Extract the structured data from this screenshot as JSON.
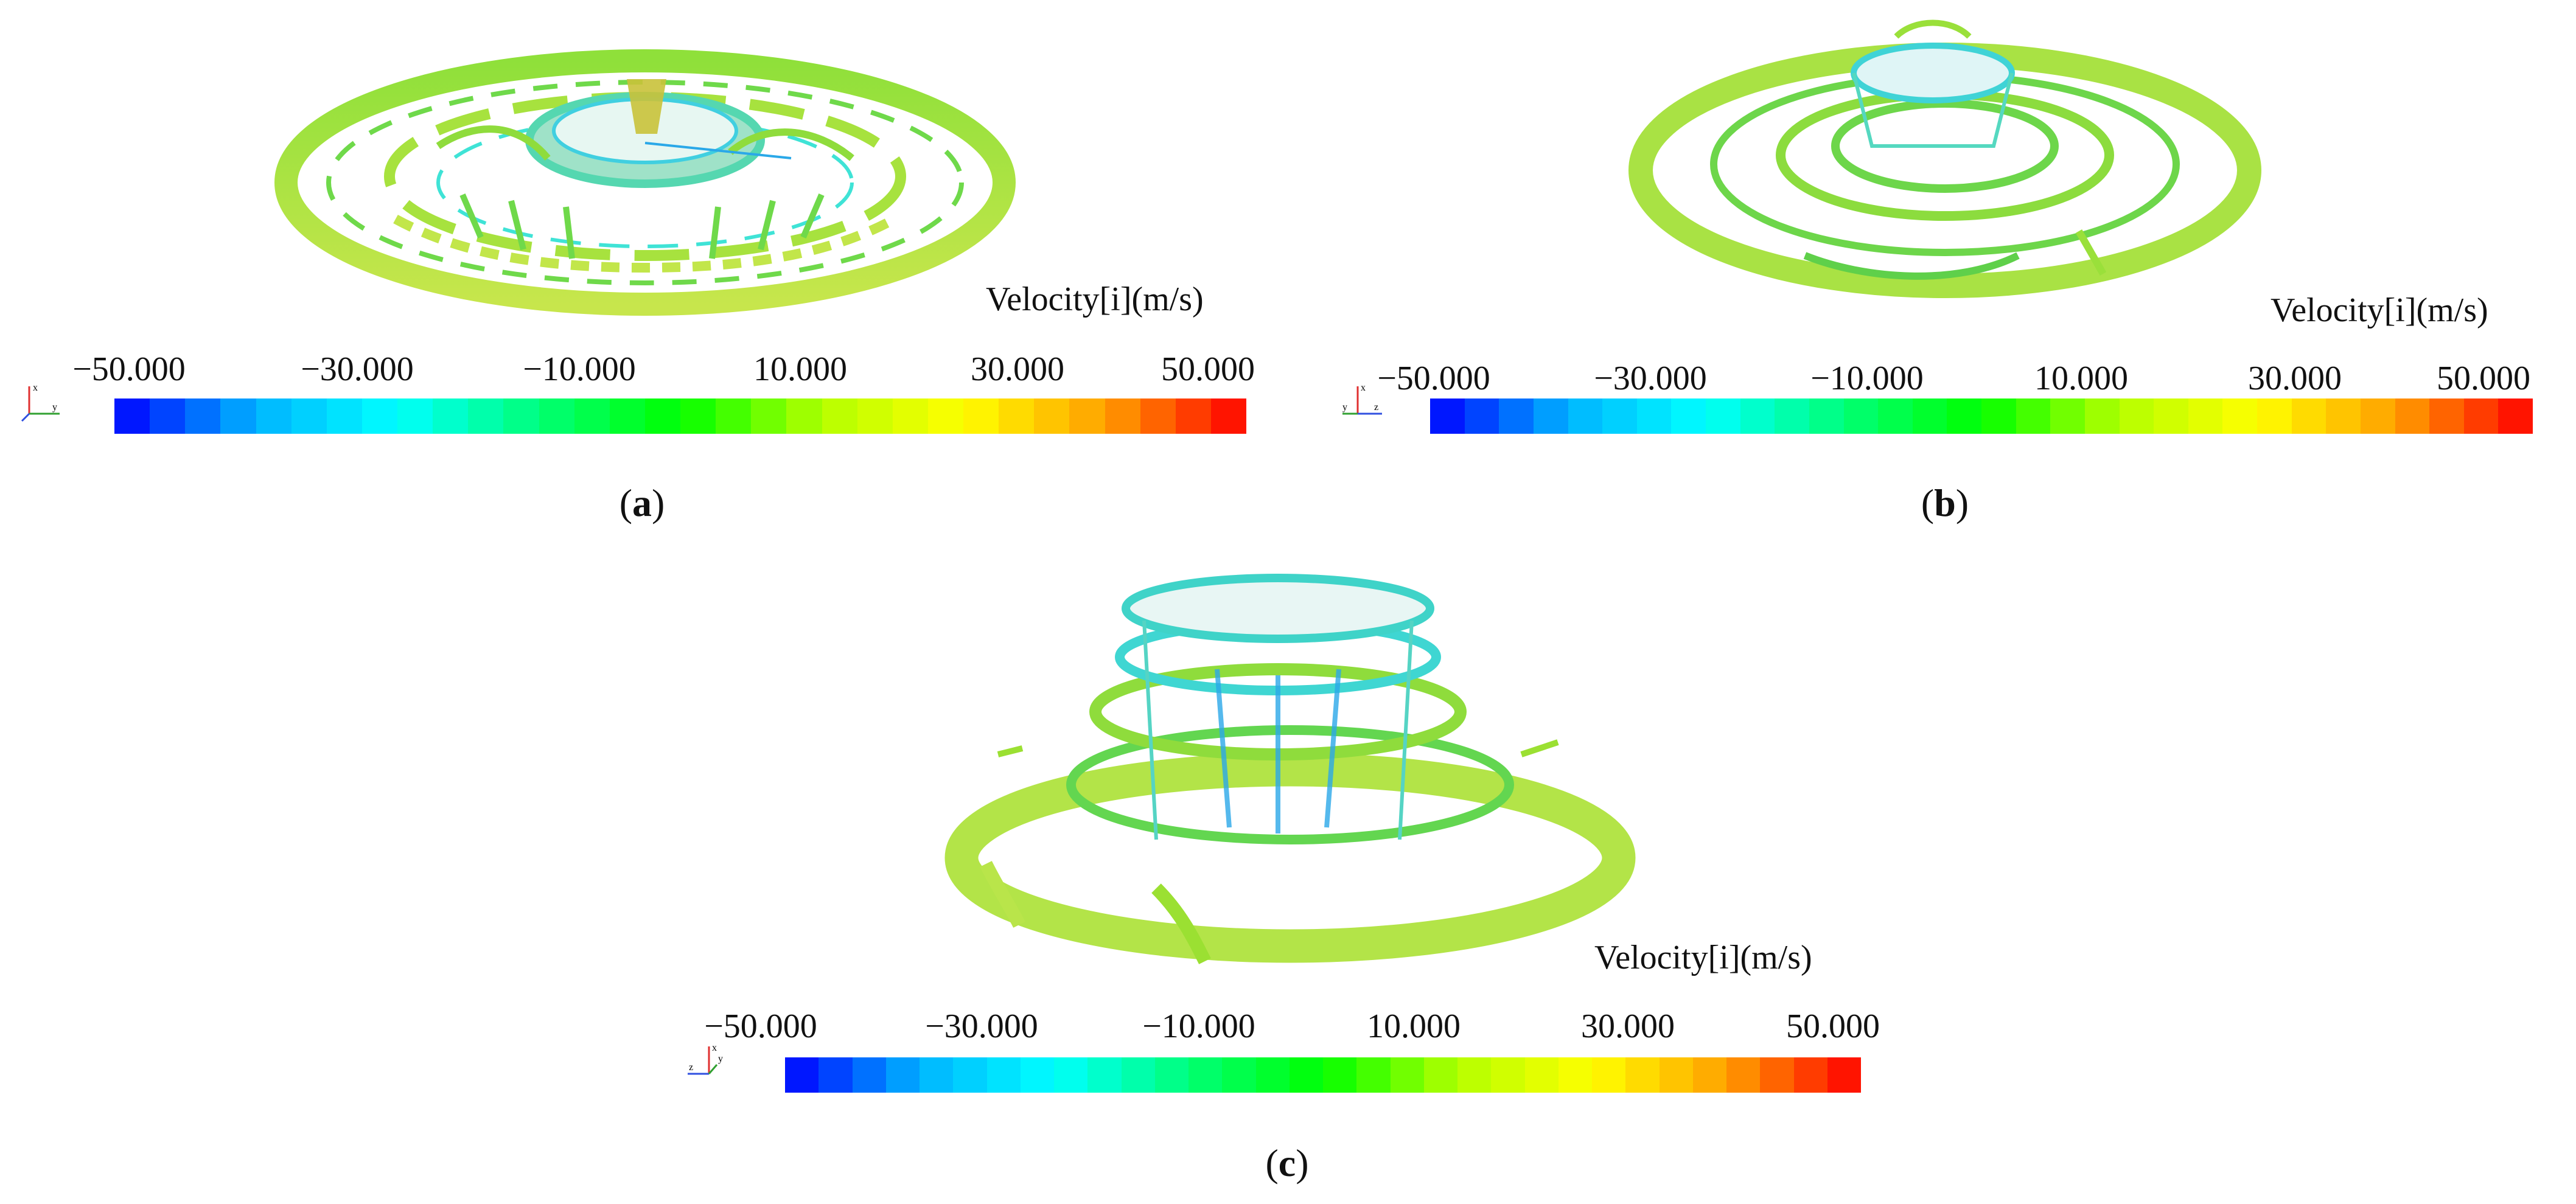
{
  "figure": {
    "panels": [
      {
        "id": "a",
        "caption_label": "a",
        "view": "top-oblique",
        "legend": {
          "title": "Velocity[i](m/s)",
          "ticks": [
            "−50.000",
            "−30.000",
            "−10.000",
            "10.000",
            "30.000",
            "50.000"
          ]
        },
        "axis_triad": {
          "labels": [
            "x",
            "y"
          ]
        }
      },
      {
        "id": "b",
        "caption_label": "b",
        "view": "oblique",
        "legend": {
          "title": "Velocity[i](m/s)",
          "ticks": [
            "−50.000",
            "−30.000",
            "−10.000",
            "10.000",
            "30.000",
            "50.000"
          ]
        },
        "axis_triad": {
          "labels": [
            "x",
            "y",
            "z"
          ]
        }
      },
      {
        "id": "c",
        "caption_label": "c",
        "view": "side",
        "legend": {
          "title": "Velocity[i](m/s)",
          "ticks": [
            "−50.000",
            "−30.000",
            "−10.000",
            "10.000",
            "30.000",
            "50.000"
          ]
        },
        "axis_triad": {
          "labels": [
            "x",
            "y",
            "z"
          ]
        }
      }
    ],
    "colormap": {
      "range": [
        -50,
        50
      ],
      "bands": 32,
      "stops": [
        "#0000ff",
        "#00b4ff",
        "#00ffff",
        "#00ff78",
        "#00ff00",
        "#b4ff00",
        "#ffff00",
        "#ffa000",
        "#ff0000"
      ]
    },
    "surface_colors": {
      "dominant": "#9be032",
      "ring": "#b9e54a",
      "cyan": "#3fe3d6",
      "blue": "#2aa8e8",
      "light": "#e8f070"
    }
  }
}
